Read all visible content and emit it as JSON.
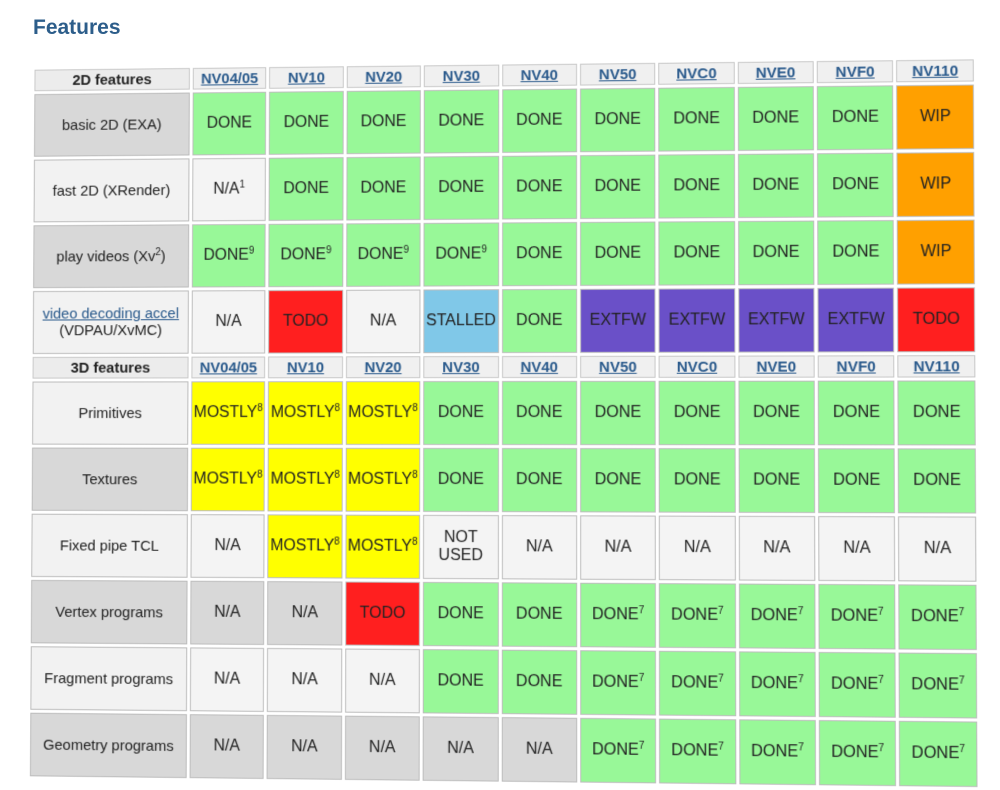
{
  "heading": "Features",
  "colors": {
    "done": "#98f898",
    "na": "#f4f4f4",
    "todo": "#ff1f1f",
    "wip": "#ffa000",
    "mostly": "#ffff00",
    "stalled": "#80c8e8",
    "extfw": "#6a50c8"
  },
  "section2d": {
    "title": "2D features",
    "chips": [
      "NV04/05",
      "NV10",
      "NV20",
      "NV30",
      "NV40",
      "NV50",
      "NVC0",
      "NVE0",
      "NVF0",
      "NV110"
    ],
    "rows": [
      {
        "feature": "basic 2D (EXA)",
        "cells": [
          [
            "DONE",
            "done",
            ""
          ],
          [
            "DONE",
            "done",
            ""
          ],
          [
            "DONE",
            "done",
            ""
          ],
          [
            "DONE",
            "done",
            ""
          ],
          [
            "DONE",
            "done",
            ""
          ],
          [
            "DONE",
            "done",
            ""
          ],
          [
            "DONE",
            "done",
            ""
          ],
          [
            "DONE",
            "done",
            ""
          ],
          [
            "DONE",
            "done",
            ""
          ],
          [
            "WIP",
            "wip",
            ""
          ]
        ]
      },
      {
        "feature": "fast 2D (XRender)",
        "cells": [
          [
            "N/A",
            "na",
            "1"
          ],
          [
            "DONE",
            "done",
            ""
          ],
          [
            "DONE",
            "done",
            ""
          ],
          [
            "DONE",
            "done",
            ""
          ],
          [
            "DONE",
            "done",
            ""
          ],
          [
            "DONE",
            "done",
            ""
          ],
          [
            "DONE",
            "done",
            ""
          ],
          [
            "DONE",
            "done",
            ""
          ],
          [
            "DONE",
            "done",
            ""
          ],
          [
            "WIP",
            "wip",
            ""
          ]
        ]
      },
      {
        "feature": "play videos (Xv",
        "feature_sup": "2",
        "feature_end": ")",
        "cells": [
          [
            "DONE",
            "done",
            "9"
          ],
          [
            "DONE",
            "done",
            "9"
          ],
          [
            "DONE",
            "done",
            "9"
          ],
          [
            "DONE",
            "done",
            "9"
          ],
          [
            "DONE",
            "done",
            ""
          ],
          [
            "DONE",
            "done",
            ""
          ],
          [
            "DONE",
            "done",
            ""
          ],
          [
            "DONE",
            "done",
            ""
          ],
          [
            "DONE",
            "done",
            ""
          ],
          [
            "WIP",
            "wip",
            ""
          ]
        ]
      },
      {
        "feature_link": "video decoding accel",
        "feature": "(VDPAU/XvMC)",
        "cells": [
          [
            "N/A",
            "na",
            ""
          ],
          [
            "TODO",
            "todo",
            ""
          ],
          [
            "N/A",
            "na",
            ""
          ],
          [
            "STALLED",
            "stalled",
            ""
          ],
          [
            "DONE",
            "done",
            ""
          ],
          [
            "EXTFW",
            "extfw",
            ""
          ],
          [
            "EXTFW",
            "extfw",
            ""
          ],
          [
            "EXTFW",
            "extfw",
            ""
          ],
          [
            "EXTFW",
            "extfw",
            ""
          ],
          [
            "TODO",
            "todo",
            ""
          ]
        ]
      }
    ]
  },
  "section3d": {
    "title": "3D features",
    "chips": [
      "NV04/05",
      "NV10",
      "NV20",
      "NV30",
      "NV40",
      "NV50",
      "NVC0",
      "NVE0",
      "NVF0",
      "NV110"
    ],
    "rows": [
      {
        "feature": "Primitives",
        "cells": [
          [
            "MOSTLY",
            "mostly",
            "8"
          ],
          [
            "MOSTLY",
            "mostly",
            "8"
          ],
          [
            "MOSTLY",
            "mostly",
            "8"
          ],
          [
            "DONE",
            "done",
            ""
          ],
          [
            "DONE",
            "done",
            ""
          ],
          [
            "DONE",
            "done",
            ""
          ],
          [
            "DONE",
            "done",
            ""
          ],
          [
            "DONE",
            "done",
            ""
          ],
          [
            "DONE",
            "done",
            ""
          ],
          [
            "DONE",
            "done",
            ""
          ]
        ]
      },
      {
        "feature": "Textures",
        "cells": [
          [
            "MOSTLY",
            "mostly",
            "8"
          ],
          [
            "MOSTLY",
            "mostly",
            "8"
          ],
          [
            "MOSTLY",
            "mostly",
            "8"
          ],
          [
            "DONE",
            "done",
            ""
          ],
          [
            "DONE",
            "done",
            ""
          ],
          [
            "DONE",
            "done",
            ""
          ],
          [
            "DONE",
            "done",
            ""
          ],
          [
            "DONE",
            "done",
            ""
          ],
          [
            "DONE",
            "done",
            ""
          ],
          [
            "DONE",
            "done",
            ""
          ]
        ]
      },
      {
        "feature": "Fixed pipe TCL",
        "cells": [
          [
            "N/A",
            "na",
            ""
          ],
          [
            "MOSTLY",
            "mostly",
            "8"
          ],
          [
            "MOSTLY",
            "mostly",
            "8"
          ],
          [
            "NOT USED",
            "notused",
            ""
          ],
          [
            "N/A",
            "na",
            ""
          ],
          [
            "N/A",
            "na",
            ""
          ],
          [
            "N/A",
            "na",
            ""
          ],
          [
            "N/A",
            "na",
            ""
          ],
          [
            "N/A",
            "na",
            ""
          ],
          [
            "N/A",
            "na",
            ""
          ]
        ]
      },
      {
        "feature": "Vertex programs",
        "cells": [
          [
            "N/A",
            "nag",
            ""
          ],
          [
            "N/A",
            "nag",
            ""
          ],
          [
            "TODO",
            "todo",
            ""
          ],
          [
            "DONE",
            "done",
            ""
          ],
          [
            "DONE",
            "done",
            ""
          ],
          [
            "DONE",
            "done",
            "7"
          ],
          [
            "DONE",
            "done",
            "7"
          ],
          [
            "DONE",
            "done",
            "7"
          ],
          [
            "DONE",
            "done",
            "7"
          ],
          [
            "DONE",
            "done",
            "7"
          ]
        ]
      },
      {
        "feature": "Fragment programs",
        "cells": [
          [
            "N/A",
            "na",
            ""
          ],
          [
            "N/A",
            "na",
            ""
          ],
          [
            "N/A",
            "na",
            ""
          ],
          [
            "DONE",
            "done",
            ""
          ],
          [
            "DONE",
            "done",
            ""
          ],
          [
            "DONE",
            "done",
            "7"
          ],
          [
            "DONE",
            "done",
            "7"
          ],
          [
            "DONE",
            "done",
            "7"
          ],
          [
            "DONE",
            "done",
            "7"
          ],
          [
            "DONE",
            "done",
            "7"
          ]
        ]
      },
      {
        "feature": "Geometry programs",
        "cells": [
          [
            "N/A",
            "nag",
            ""
          ],
          [
            "N/A",
            "nag",
            ""
          ],
          [
            "N/A",
            "nag",
            ""
          ],
          [
            "N/A",
            "nag",
            ""
          ],
          [
            "N/A",
            "nag",
            ""
          ],
          [
            "DONE",
            "done",
            "7"
          ],
          [
            "DONE",
            "done",
            "7"
          ],
          [
            "DONE",
            "done",
            "7"
          ],
          [
            "DONE",
            "done",
            "7"
          ],
          [
            "DONE",
            "done",
            "7"
          ]
        ]
      }
    ]
  }
}
